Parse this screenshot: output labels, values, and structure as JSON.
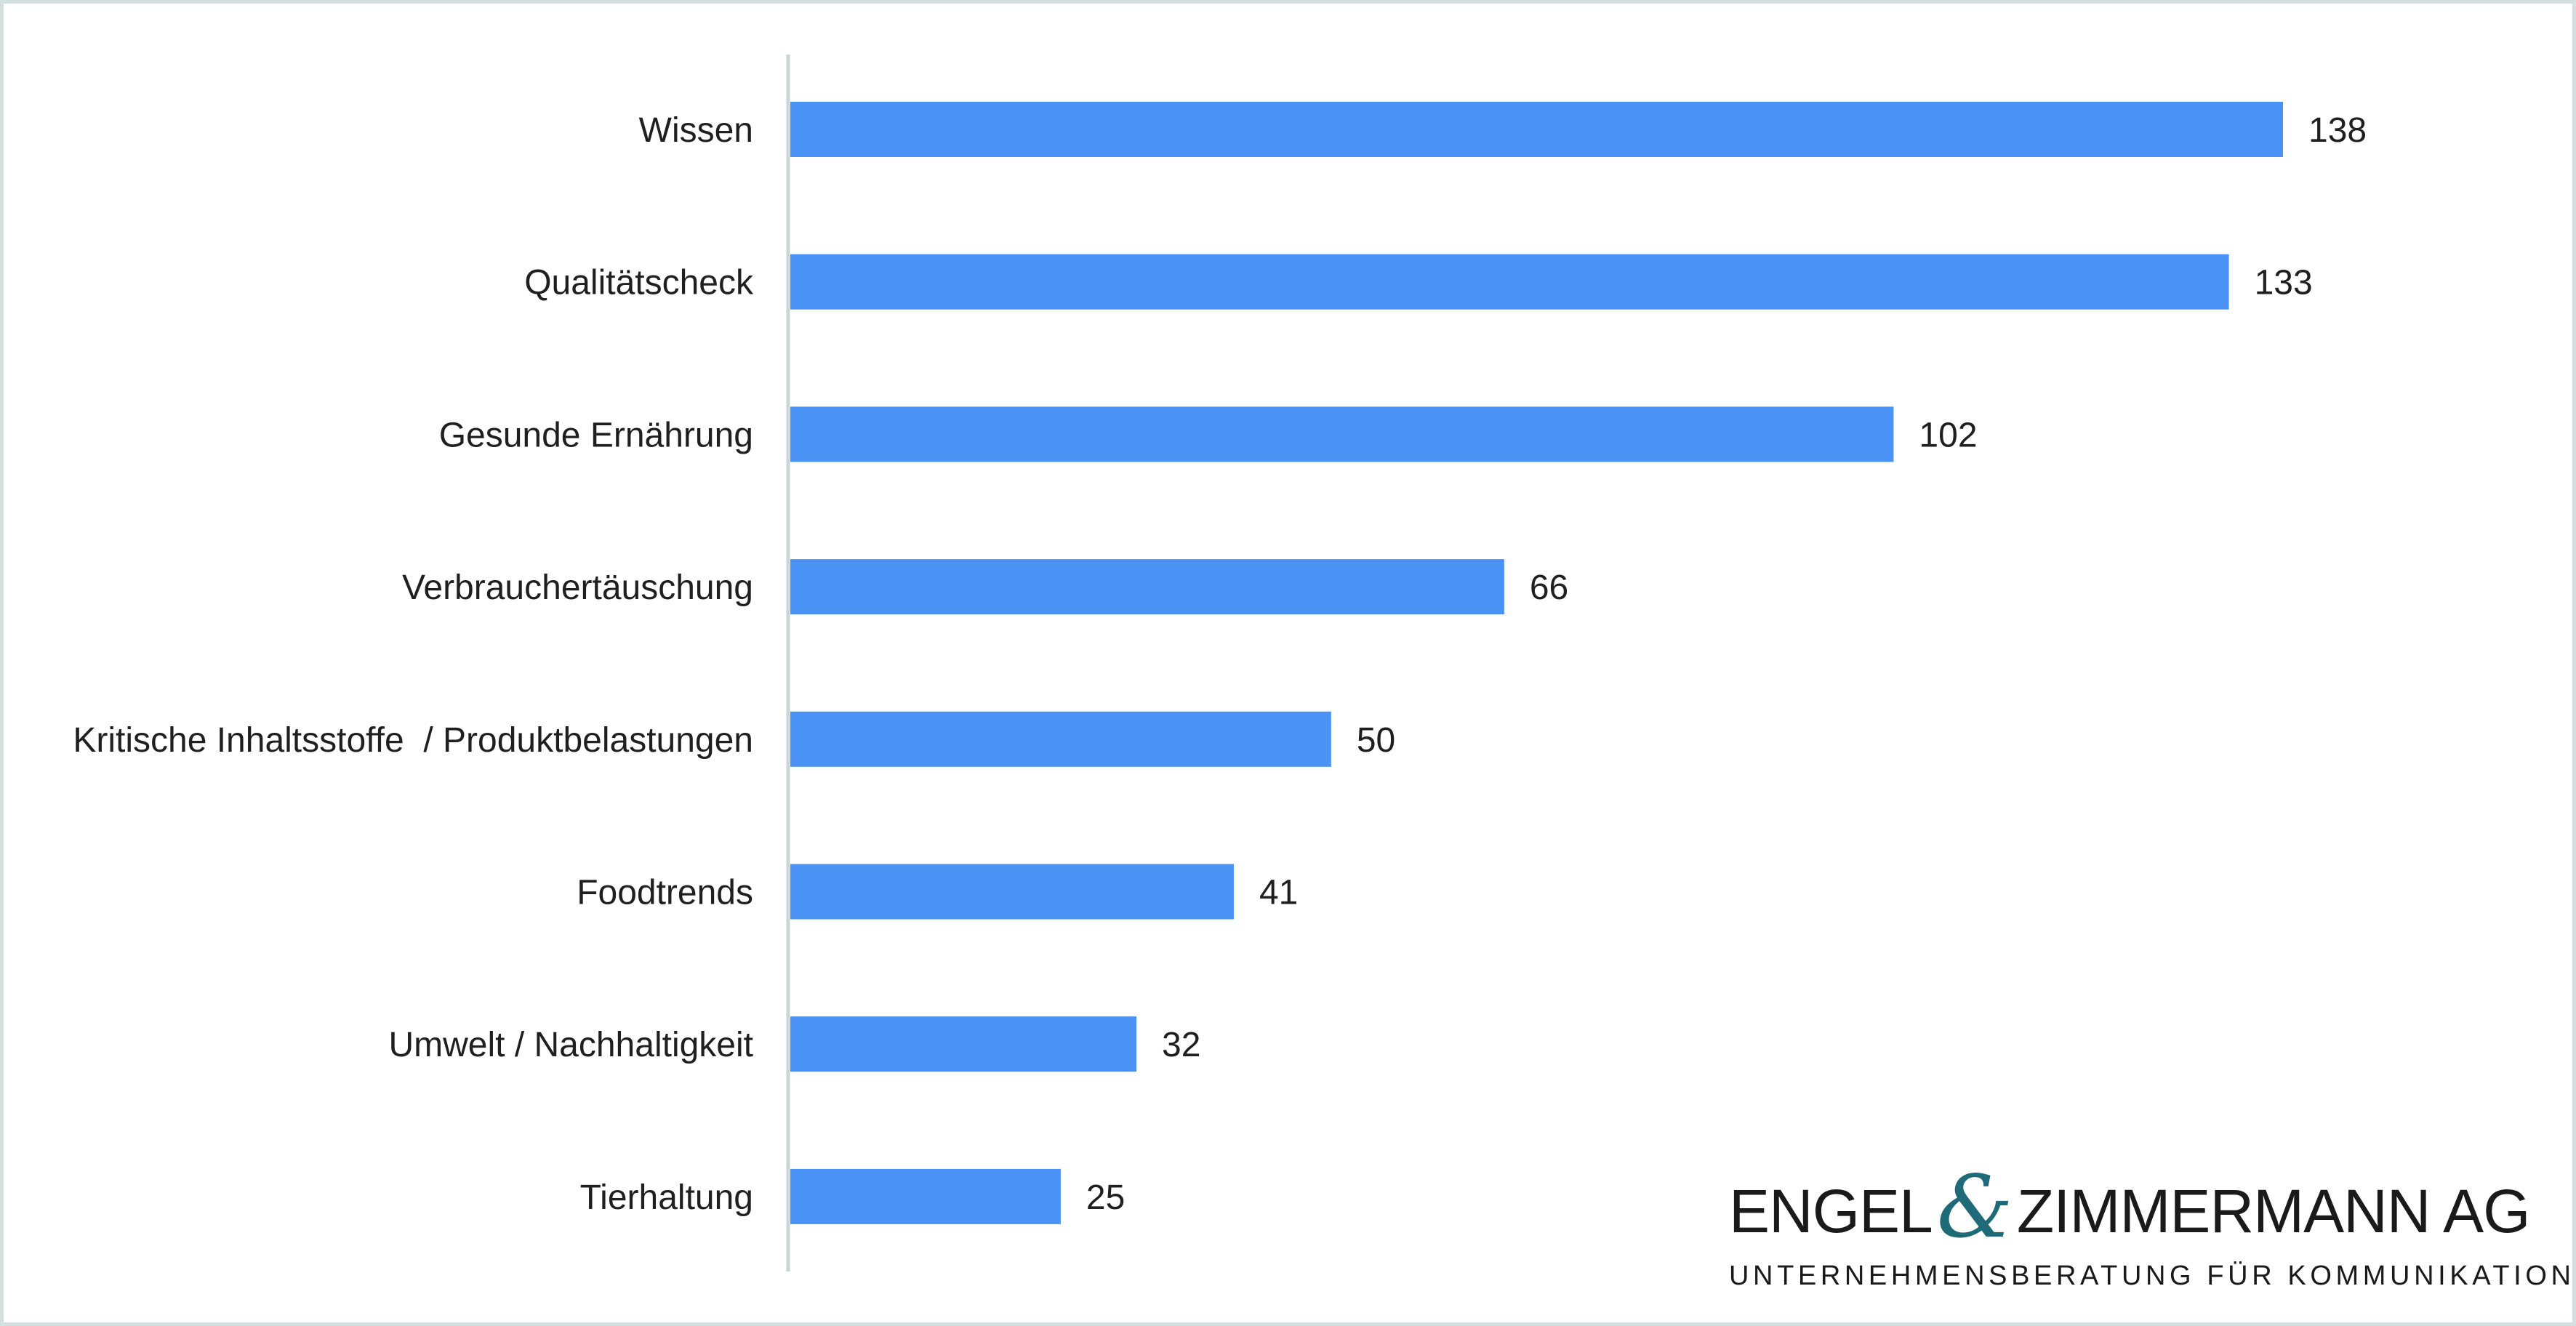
{
  "chart_data": {
    "type": "bar",
    "orientation": "horizontal",
    "categories": [
      "Wissen",
      "Qualitätscheck",
      "Gesunde Ernährung",
      "Verbrauchertäuschung",
      "Kritische Inhaltsstoffe  / Produktbelastungen",
      "Foodtrends",
      "Umwelt / Nachhaltigkeit",
      "Tierhaltung"
    ],
    "values": [
      138,
      133,
      102,
      66,
      50,
      41,
      32,
      25
    ],
    "value_labels": [
      "138",
      "133",
      "102",
      "66",
      "50",
      "41",
      "32",
      "25"
    ],
    "xlim": [
      0,
      138
    ],
    "bar_color": "#4a93f5",
    "axis_color": "#c8d6d6",
    "grid": false,
    "legend": "none",
    "data_labels": true
  },
  "logo": {
    "name_left": "ENGEL",
    "ampersand": "&",
    "name_right": "ZIMMERMANN AG",
    "tagline": "UNTERNEHMENSBERATUNG FÜR KOMMUNIKATION",
    "accent_color": "#1e6a78"
  },
  "frame_color": "#d4e0e0"
}
